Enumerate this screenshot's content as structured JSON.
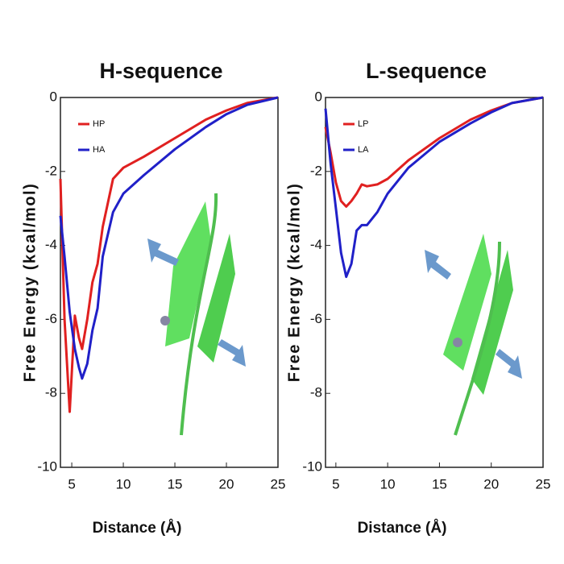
{
  "chart_data": [
    {
      "type": "line",
      "title": "H-sequence",
      "x_label": "Distance (Å)",
      "y_label": "Free Energy (kcal/mol)",
      "x": [
        3.9,
        4.3,
        4.8,
        5.3,
        5.7,
        6,
        6.5,
        7,
        7.5,
        8,
        9,
        10,
        12,
        15,
        18,
        20,
        22,
        25
      ],
      "series": [
        {
          "name": "HP",
          "color": "#e02020",
          "values": [
            -2.2,
            -6,
            -8.5,
            -5.9,
            -6.5,
            -6.8,
            -6,
            -5,
            -4.5,
            -3.5,
            -2.2,
            -1.9,
            -1.6,
            -1.1,
            -0.6,
            -0.35,
            -0.15,
            0
          ]
        },
        {
          "name": "HA",
          "color": "#2020c8",
          "values": [
            -3.2,
            -4.3,
            -5.8,
            -6.8,
            -7.3,
            -7.6,
            -7.2,
            -6.3,
            -5.7,
            -4.3,
            -3.1,
            -2.6,
            -2.1,
            -1.4,
            -0.8,
            -0.45,
            -0.2,
            0
          ]
        }
      ],
      "xlim": [
        3.9,
        25
      ],
      "xticks": [
        5,
        10,
        15,
        20,
        25
      ],
      "ylim": [
        -10,
        0
      ],
      "yticks": [
        0,
        -2,
        -4,
        -6,
        -8,
        -10
      ],
      "legend": "upper left"
    },
    {
      "type": "line",
      "title": "L-sequence",
      "x_label": "Distance (Å)",
      "y_label": "Free Energy (kcal/mol)",
      "x": [
        4,
        4.5,
        5,
        5.5,
        6,
        6.5,
        7,
        7.5,
        8,
        9,
        10,
        12,
        15,
        18,
        20,
        22,
        25
      ],
      "series": [
        {
          "name": "LP",
          "color": "#e02020",
          "values": [
            -0.8,
            -1.5,
            -2.3,
            -2.8,
            -2.95,
            -2.8,
            -2.6,
            -2.35,
            -2.4,
            -2.35,
            -2.2,
            -1.7,
            -1.1,
            -0.6,
            -0.35,
            -0.15,
            0
          ]
        },
        {
          "name": "LA",
          "color": "#2020c8",
          "values": [
            -0.3,
            -1.8,
            -3,
            -4.2,
            -4.85,
            -4.5,
            -3.6,
            -3.45,
            -3.45,
            -3.1,
            -2.6,
            -1.9,
            -1.2,
            -0.7,
            -0.4,
            -0.15,
            0
          ]
        }
      ],
      "xlim": [
        4,
        25
      ],
      "xticks": [
        5,
        10,
        15,
        20,
        25
      ],
      "ylim": [
        -10,
        0
      ],
      "yticks": [
        0,
        -2,
        -4,
        -6,
        -8,
        -10
      ],
      "legend": "upper left"
    }
  ]
}
